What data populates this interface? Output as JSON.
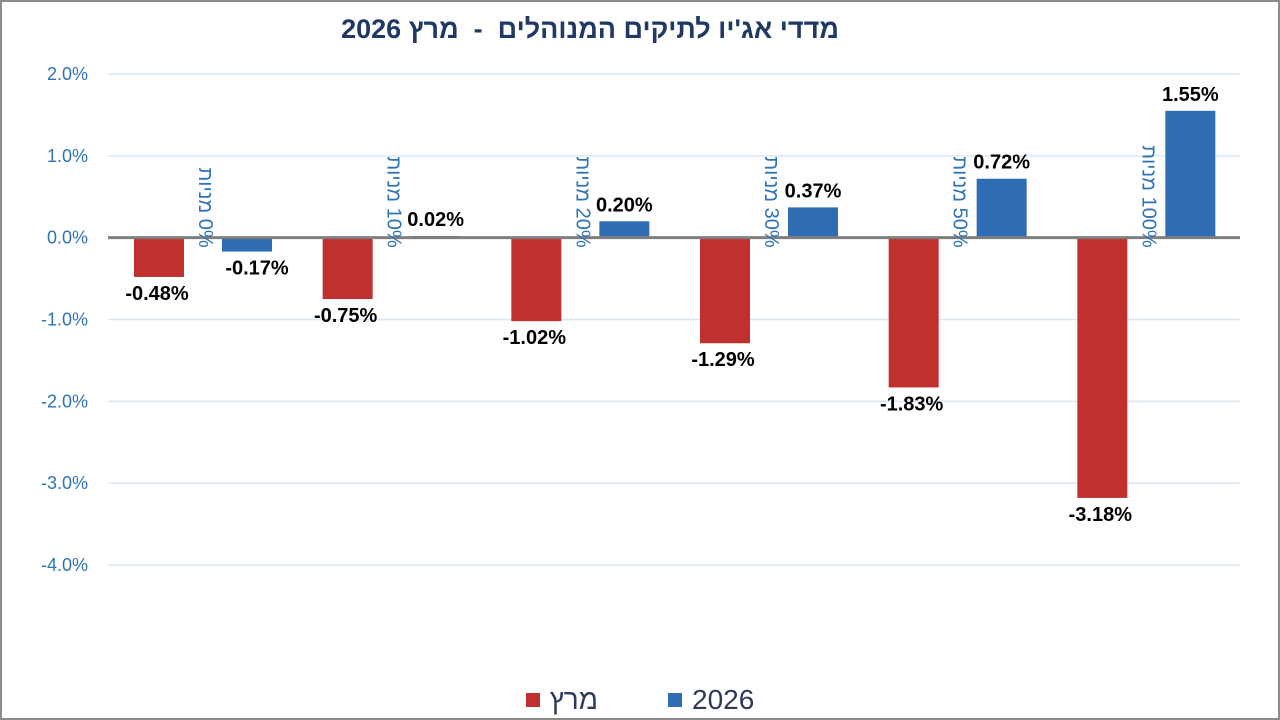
{
  "title": "מדדי אג'יו לתיקים המנוהלים  -  מרץ 2026",
  "legend": {
    "series_0": "מרץ",
    "series_1": "2026"
  },
  "colors": {
    "march": "#c0302e",
    "year_2026": "#2e6db4",
    "axis": "#7f7f7f",
    "grid": "#d9e7f5",
    "tick_text": "#2e74b5"
  },
  "chart_data": {
    "type": "bar",
    "title": "מדדי אג'יו לתיקים המנוהלים  -  מרץ 2026",
    "categories": [
      "0% מניות",
      "10% מניות",
      "20% מניות",
      "30% מניות",
      "50% מניות",
      "100% מניות"
    ],
    "series": [
      {
        "name": "מרץ",
        "values": [
          -0.48,
          -0.75,
          -1.02,
          -1.29,
          -1.83,
          -3.18
        ]
      },
      {
        "name": "2026",
        "values": [
          -0.17,
          0.02,
          0.2,
          0.37,
          0.72,
          1.55
        ]
      }
    ],
    "data_labels": [
      [
        "-0.48%",
        "-0.75%",
        "-1.02%",
        "-1.29%",
        "-1.83%",
        "-3.18%"
      ],
      [
        "-0.17%",
        "0.02%",
        "0.20%",
        "0.37%",
        "0.72%",
        "1.55%"
      ]
    ],
    "y_ticks": [
      "2.0%",
      "1.0%",
      "0.0%",
      "-1.0%",
      "-2.0%",
      "-3.0%",
      "-4.0%"
    ],
    "ylim": [
      -4,
      2
    ],
    "grid": true,
    "legend_position": "bottom",
    "xlabel": "",
    "ylabel": ""
  }
}
